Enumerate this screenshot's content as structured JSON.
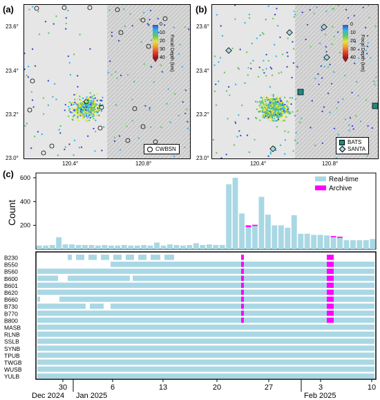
{
  "panels": {
    "a": {
      "letter": "(a)"
    },
    "b": {
      "letter": "(b)"
    },
    "c": {
      "letter": "(c)"
    }
  },
  "maps": {
    "lat_ticks": [
      "23.6°",
      "23.4°",
      "23.2°",
      "23.0°"
    ],
    "lon_ticks": [
      "120.4°",
      "120.8°"
    ],
    "colorbar": {
      "label": "Focal Depth (km)",
      "ticks": [
        "0",
        "10",
        "20",
        "30",
        "40"
      ],
      "colors": [
        "#3a4bd6",
        "#31b7e6",
        "#61c95d",
        "#e6e43a",
        "#f39a2b",
        "#e63a2b",
        "#8b1a1a"
      ]
    },
    "legend_a": {
      "items": [
        {
          "label": "CWBSN",
          "symbol": "circle"
        }
      ]
    },
    "legend_b": {
      "items": [
        {
          "label": "BATS",
          "symbol": "square"
        },
        {
          "label": "SANTA",
          "symbol": "diamond"
        }
      ]
    }
  },
  "chart_data": [
    {
      "type": "bar",
      "panel": "c-top",
      "ylabel": "Count",
      "ylim": [
        0,
        640
      ],
      "yticks": [
        200,
        400,
        600
      ],
      "legend": [
        {
          "name": "Real-time",
          "color": "#a9d8e4"
        },
        {
          "name": "Archive",
          "color": "#ff00ff"
        }
      ],
      "legend_position": "top-right",
      "series": [
        {
          "name": "Real-time",
          "values": [
            30,
            30,
            35,
            100,
            40,
            40,
            35,
            35,
            35,
            30,
            35,
            30,
            30,
            35,
            30,
            30,
            35,
            30,
            55,
            30,
            40,
            35,
            30,
            35,
            50,
            35,
            40,
            35,
            35,
            545,
            600,
            300,
            185,
            195,
            440,
            290,
            200,
            200,
            180,
            285,
            130,
            130,
            120,
            120,
            115,
            100,
            95,
            75,
            75,
            75,
            75,
            85
          ]
        },
        {
          "name": "Archive",
          "values": [
            0,
            0,
            0,
            0,
            0,
            0,
            0,
            0,
            0,
            0,
            0,
            0,
            0,
            0,
            0,
            0,
            0,
            0,
            0,
            0,
            0,
            0,
            0,
            0,
            0,
            0,
            0,
            0,
            0,
            0,
            0,
            0,
            15,
            10,
            0,
            0,
            0,
            0,
            0,
            0,
            0,
            0,
            0,
            0,
            0,
            10,
            10,
            0,
            0,
            0,
            0,
            0
          ]
        }
      ]
    },
    {
      "type": "timeline",
      "panel": "c-bottom",
      "x_ticks": [
        "30",
        "6",
        "13",
        "20",
        "27",
        "3",
        "10"
      ],
      "month_labels": [
        "Dec 2024",
        "Jan 2025",
        "Feb 2025"
      ],
      "stations": [
        "B230",
        "B550",
        "B560",
        "B600",
        "B601",
        "B620",
        "B660",
        "B730",
        "B770",
        "B800",
        "MASB",
        "RLNB",
        "SSLB",
        "SYNB",
        "TPUB",
        "TWGB",
        "WUSB",
        "YULB"
      ]
    }
  ]
}
